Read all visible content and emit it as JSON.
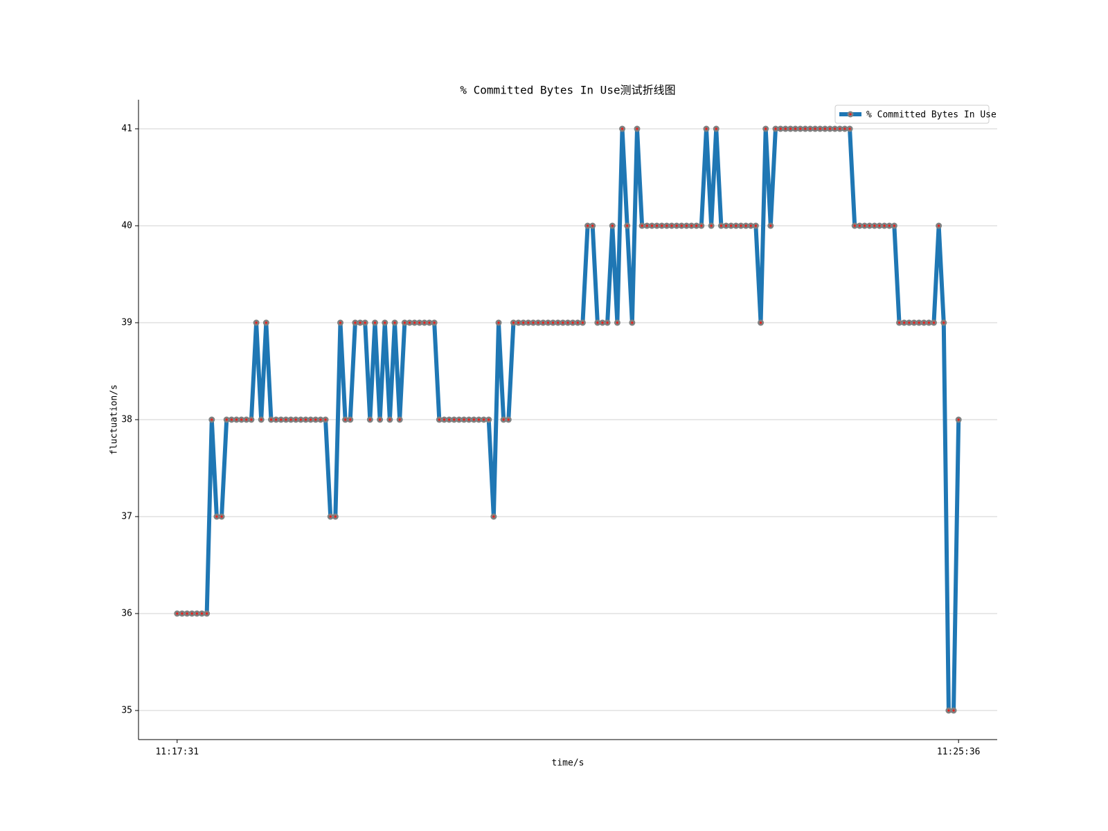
{
  "chart_data": {
    "type": "line",
    "title": "% Committed Bytes In Use测试折线图",
    "x_label": "time/s",
    "y_label": "fluctuation/s",
    "categories": [
      "11:17:31",
      null,
      null,
      null,
      null,
      null,
      null,
      null,
      null,
      null,
      null,
      null,
      null,
      null,
      null,
      null,
      null,
      null,
      null,
      null,
      null,
      null,
      null,
      null,
      null,
      null,
      null,
      null,
      null,
      null,
      null,
      null,
      null,
      null,
      null,
      null,
      null,
      null,
      null,
      null,
      null,
      null,
      null,
      null,
      null,
      null,
      null,
      null,
      null,
      null,
      null,
      null,
      null,
      null,
      null,
      null,
      null,
      null,
      null,
      null,
      null,
      null,
      null,
      null,
      null,
      null,
      null,
      null,
      null,
      null,
      null,
      null,
      null,
      null,
      null,
      null,
      null,
      null,
      null,
      null,
      null,
      null,
      null,
      null,
      null,
      null,
      null,
      null,
      null,
      null,
      null,
      null,
      null,
      null,
      null,
      null,
      null,
      null,
      null,
      null,
      null,
      null,
      null,
      null,
      null,
      null,
      null,
      null,
      null,
      null,
      null,
      null,
      null,
      null,
      null,
      null,
      null,
      null,
      null,
      null,
      null,
      null,
      null,
      null,
      null,
      null,
      null,
      null,
      null,
      null,
      null,
      null,
      null,
      null,
      null,
      null,
      null,
      null,
      null,
      null,
      null,
      null,
      null,
      null,
      null,
      null,
      null,
      null,
      null,
      null,
      null,
      null,
      null,
      null,
      null,
      null,
      null,
      null,
      "11:25:36"
    ],
    "series": [
      {
        "name": "% Committed Bytes In Use",
        "color": "#1f77b4",
        "marker_color": "#808080",
        "marker_center_color": "#e8201c",
        "values": [
          36,
          36,
          36,
          36,
          36,
          36,
          36,
          38,
          37,
          37,
          38,
          38,
          38,
          38,
          38,
          38,
          39,
          38,
          39,
          38,
          38,
          38,
          38,
          38,
          38,
          38,
          38,
          38,
          38,
          38,
          38,
          37,
          37,
          39,
          38,
          38,
          39,
          39,
          39,
          38,
          39,
          38,
          39,
          38,
          39,
          38,
          39,
          39,
          39,
          39,
          39,
          39,
          39,
          38,
          38,
          38,
          38,
          38,
          38,
          38,
          38,
          38,
          38,
          38,
          37,
          39,
          38,
          38,
          39,
          39,
          39,
          39,
          39,
          39,
          39,
          39,
          39,
          39,
          39,
          39,
          39,
          39,
          39,
          40,
          40,
          39,
          39,
          39,
          40,
          39,
          41,
          40,
          39,
          41,
          40,
          40,
          40,
          40,
          40,
          40,
          40,
          40,
          40,
          40,
          40,
          40,
          40,
          41,
          40,
          41,
          40,
          40,
          40,
          40,
          40,
          40,
          40,
          40,
          39,
          41,
          40,
          41,
          41,
          41,
          41,
          41,
          41,
          41,
          41,
          41,
          41,
          41,
          41,
          41,
          41,
          41,
          41,
          40,
          40,
          40,
          40,
          40,
          40,
          40,
          40,
          40,
          39,
          39,
          39,
          39,
          39,
          39,
          39,
          39,
          40,
          39,
          35,
          35,
          38
        ]
      }
    ],
    "ylim": [
      34.7,
      41.3
    ],
    "yticks": [
      35,
      36,
      37,
      38,
      39,
      40,
      41
    ],
    "grid": true,
    "legend": "upper right"
  }
}
